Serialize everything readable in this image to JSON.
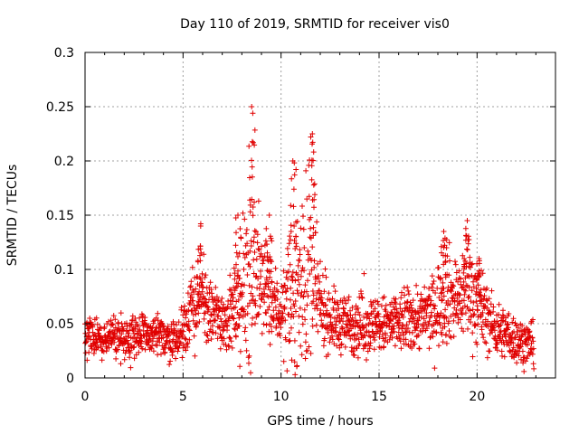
{
  "chart_data": {
    "type": "scatter",
    "title": "Day 110 of 2019, SRMTID for receiver vis0",
    "xlabel": "GPS time / hours",
    "ylabel": "SRMTID / TECUs",
    "xlim": [
      0,
      24
    ],
    "ylim": [
      0,
      0.3
    ],
    "xticks": [
      0,
      5,
      10,
      15,
      20
    ],
    "xtick_labels": [
      "0",
      "5",
      "10",
      "15",
      "20"
    ],
    "yticks": [
      0,
      0.05,
      0.1,
      0.15,
      0.2,
      0.25,
      0.3
    ],
    "ytick_labels": [
      "0",
      "0.05",
      "0.1",
      "0.15",
      "0.2",
      "0.25",
      "0.3"
    ],
    "grid": true,
    "marker": "+",
    "color": "#e00000",
    "x_range": [
      0,
      22.9
    ],
    "sample_step_hours": 0.012,
    "envelope": {
      "description": "typical SRMTID level (median / spread) by hour, read from the scatter",
      "x": [
        0,
        1,
        2,
        3,
        4,
        4.8,
        5.2,
        5.8,
        6.3,
        7,
        7.7,
        8.2,
        8.5,
        9,
        9.5,
        10,
        10.5,
        11,
        11.5,
        12,
        12.5,
        13,
        14,
        15,
        16,
        17,
        17.8,
        18.3,
        19,
        19.5,
        20,
        20.5,
        21,
        21.5,
        22,
        22.9
      ],
      "median": [
        0.035,
        0.037,
        0.038,
        0.04,
        0.037,
        0.035,
        0.055,
        0.075,
        0.06,
        0.055,
        0.06,
        0.08,
        0.11,
        0.085,
        0.07,
        0.06,
        0.07,
        0.09,
        0.1,
        0.065,
        0.055,
        0.05,
        0.05,
        0.048,
        0.05,
        0.055,
        0.06,
        0.08,
        0.07,
        0.085,
        0.07,
        0.055,
        0.045,
        0.04,
        0.035,
        0.03
      ],
      "spread": [
        0.01,
        0.012,
        0.012,
        0.013,
        0.012,
        0.012,
        0.02,
        0.025,
        0.018,
        0.018,
        0.022,
        0.04,
        0.06,
        0.03,
        0.025,
        0.02,
        0.035,
        0.05,
        0.06,
        0.02,
        0.018,
        0.016,
        0.018,
        0.016,
        0.018,
        0.018,
        0.02,
        0.03,
        0.022,
        0.03,
        0.025,
        0.018,
        0.015,
        0.014,
        0.013,
        0.012
      ]
    },
    "peaks": [
      {
        "x": 5.9,
        "y": 0.14
      },
      {
        "x": 7.8,
        "y": 0.15
      },
      {
        "x": 8.5,
        "y": 0.25
      },
      {
        "x": 9.4,
        "y": 0.15
      },
      {
        "x": 10.6,
        "y": 0.2
      },
      {
        "x": 11.6,
        "y": 0.225
      },
      {
        "x": 18.3,
        "y": 0.135
      },
      {
        "x": 19.5,
        "y": 0.145
      },
      {
        "x": 20.1,
        "y": 0.11
      }
    ]
  }
}
